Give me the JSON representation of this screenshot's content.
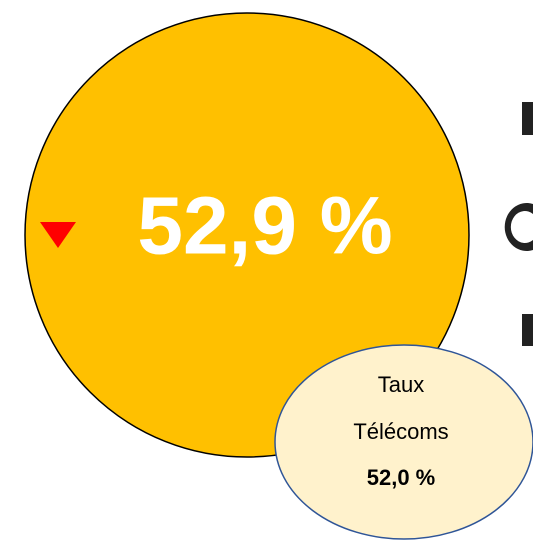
{
  "main": {
    "value": "52,9 %"
  },
  "reference": {
    "label_line1": "Taux",
    "label_line2": "Télécoms",
    "value": "52,0 %"
  }
}
